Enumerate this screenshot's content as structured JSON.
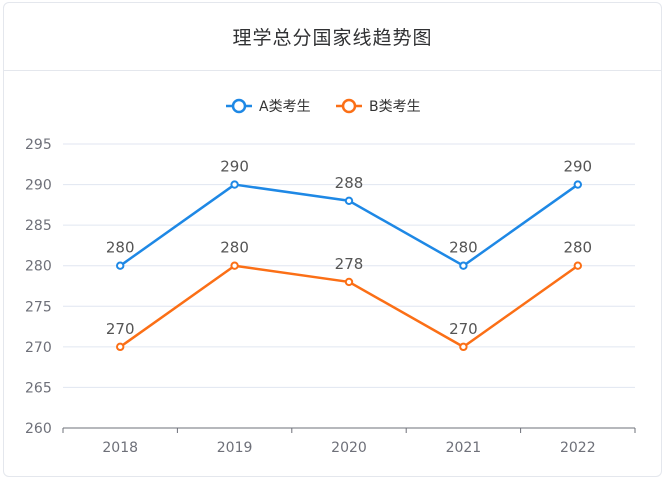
{
  "chart_data": {
    "type": "line",
    "title": "理学总分国家线趋势图",
    "categories": [
      "2018",
      "2019",
      "2020",
      "2021",
      "2022"
    ],
    "series": [
      {
        "name": "A类考生",
        "values": [
          280,
          290,
          288,
          280,
          290
        ],
        "color": "#1e88e5"
      },
      {
        "name": "B类考生",
        "values": [
          270,
          280,
          278,
          270,
          280
        ],
        "color": "#fb6f16"
      }
    ],
    "yticks": [
      260,
      265,
      270,
      275,
      280,
      285,
      290,
      295
    ],
    "ylim": [
      260,
      295
    ],
    "grid": true,
    "legend": "top-center",
    "xlabel": "",
    "ylabel": ""
  }
}
